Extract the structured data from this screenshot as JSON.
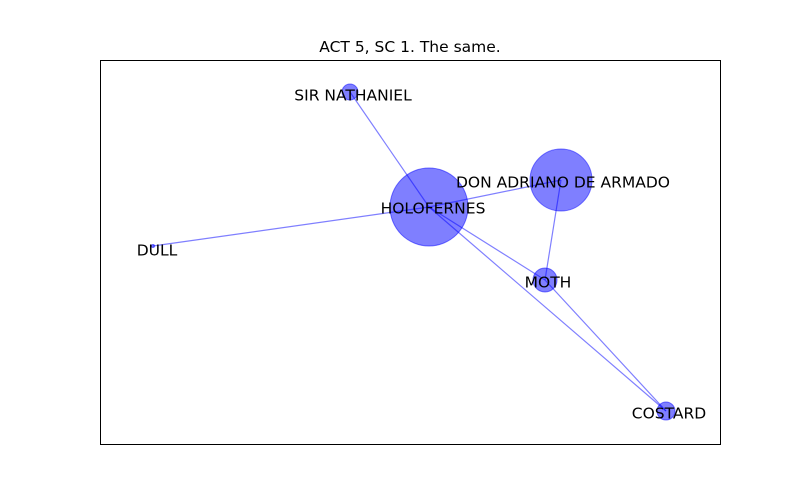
{
  "title": "ACT 5, SC 1. The same.",
  "colors": {
    "node_fill": "#0000ff",
    "node_opacity": 0.5,
    "edge_stroke": "#0000ff",
    "edge_opacity": 0.5,
    "label": "#000000",
    "frame": "#000000"
  },
  "nodes": [
    {
      "id": "holofernes",
      "label": "HOLOFERNES"
    },
    {
      "id": "armado",
      "label": "DON ADRIANO DE ARMADO"
    },
    {
      "id": "nathaniel",
      "label": "SIR NATHANIEL"
    },
    {
      "id": "dull",
      "label": "DULL"
    },
    {
      "id": "moth",
      "label": "MOTH"
    },
    {
      "id": "costard",
      "label": "COSTARD"
    }
  ],
  "edges": [
    {
      "source": "holofernes",
      "target": "armado"
    },
    {
      "source": "holofernes",
      "target": "nathaniel"
    },
    {
      "source": "holofernes",
      "target": "dull"
    },
    {
      "source": "holofernes",
      "target": "moth"
    },
    {
      "source": "holofernes",
      "target": "costard"
    },
    {
      "source": "armado",
      "target": "moth"
    },
    {
      "source": "moth",
      "target": "costard"
    }
  ]
}
